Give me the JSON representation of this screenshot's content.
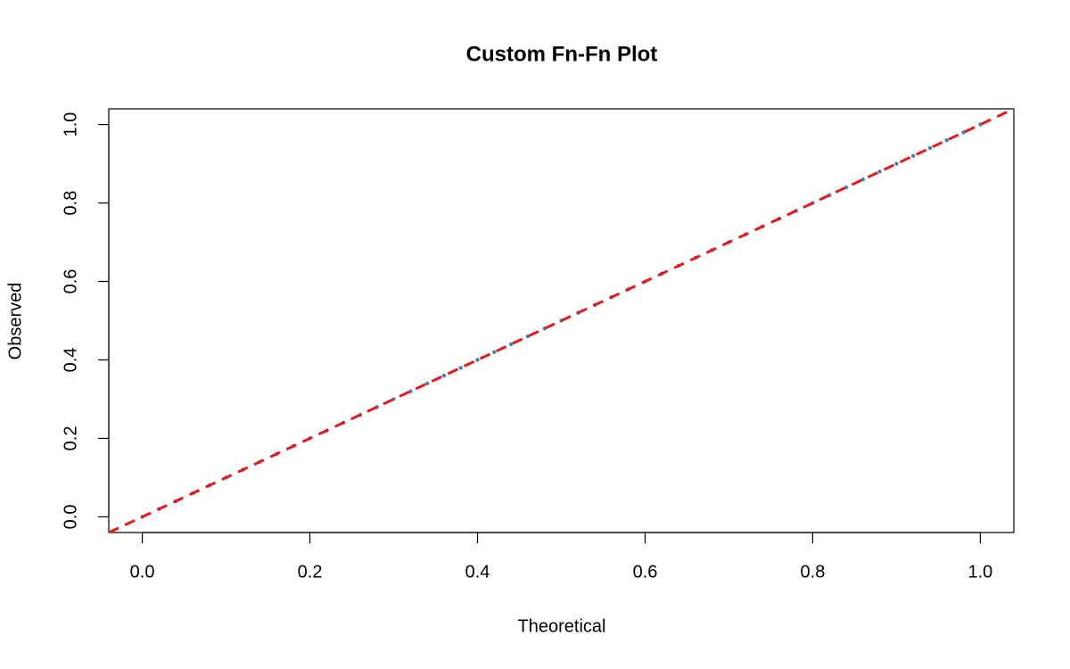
{
  "chart_data": {
    "type": "scatter",
    "title": "Custom Fn-Fn Plot",
    "x_label": "Theoretical",
    "y_label": "Observed",
    "xlim": [
      -0.04,
      1.04
    ],
    "ylim": [
      -0.04,
      1.04
    ],
    "xticks": [
      {
        "value": 0,
        "label": "0.0"
      },
      0.2,
      0.4,
      0.6,
      0.8,
      {
        "value": 1,
        "label": "1.0"
      }
    ],
    "yticks": [
      {
        "value": 0,
        "label": "0.0"
      },
      0.2,
      0.4,
      0.6,
      0.8,
      {
        "value": 1,
        "label": "1.0"
      }
    ],
    "series": [
      {
        "color": "#4682b4",
        "x": [
          0,
          0.02,
          0.04,
          0.06,
          0.08,
          0.1,
          0.12,
          0.14,
          0.16,
          0.18,
          0.2,
          0.22,
          0.24,
          0.26,
          0.28,
          0.3,
          0.32,
          0.34,
          0.36,
          0.38,
          0.4,
          0.42,
          0.44,
          0.46,
          0.48,
          0.5,
          0.52,
          0.54,
          0.56,
          0.58,
          0.6,
          0.62,
          0.64,
          0.66,
          0.68,
          0.7,
          0.72,
          0.74,
          0.76,
          0.78,
          0.8,
          0.82,
          0.84,
          0.86,
          0.88,
          0.9,
          0.92,
          0.94,
          0.96,
          0.98,
          1
        ],
        "values": [
          0,
          0.02,
          0.04,
          0.06,
          0.08,
          0.1,
          0.12,
          0.14,
          0.16,
          0.18,
          0.2,
          0.22,
          0.24,
          0.26,
          0.28,
          0.3,
          0.32,
          0.34,
          0.36,
          0.38,
          0.4,
          0.42,
          0.44,
          0.46,
          0.48,
          0.5,
          0.52,
          0.54,
          0.56,
          0.58,
          0.6,
          0.62,
          0.64,
          0.66,
          0.68,
          0.7,
          0.72,
          0.74,
          0.76,
          0.78,
          0.8,
          0.82,
          0.84,
          0.86,
          0.88,
          0.9,
          0.92,
          0.94,
          0.96,
          0.98,
          1
        ]
      }
    ],
    "reference_line": {
      "slope": 1,
      "intercept": 0,
      "color": "#e41a1c",
      "dashed": true
    }
  }
}
